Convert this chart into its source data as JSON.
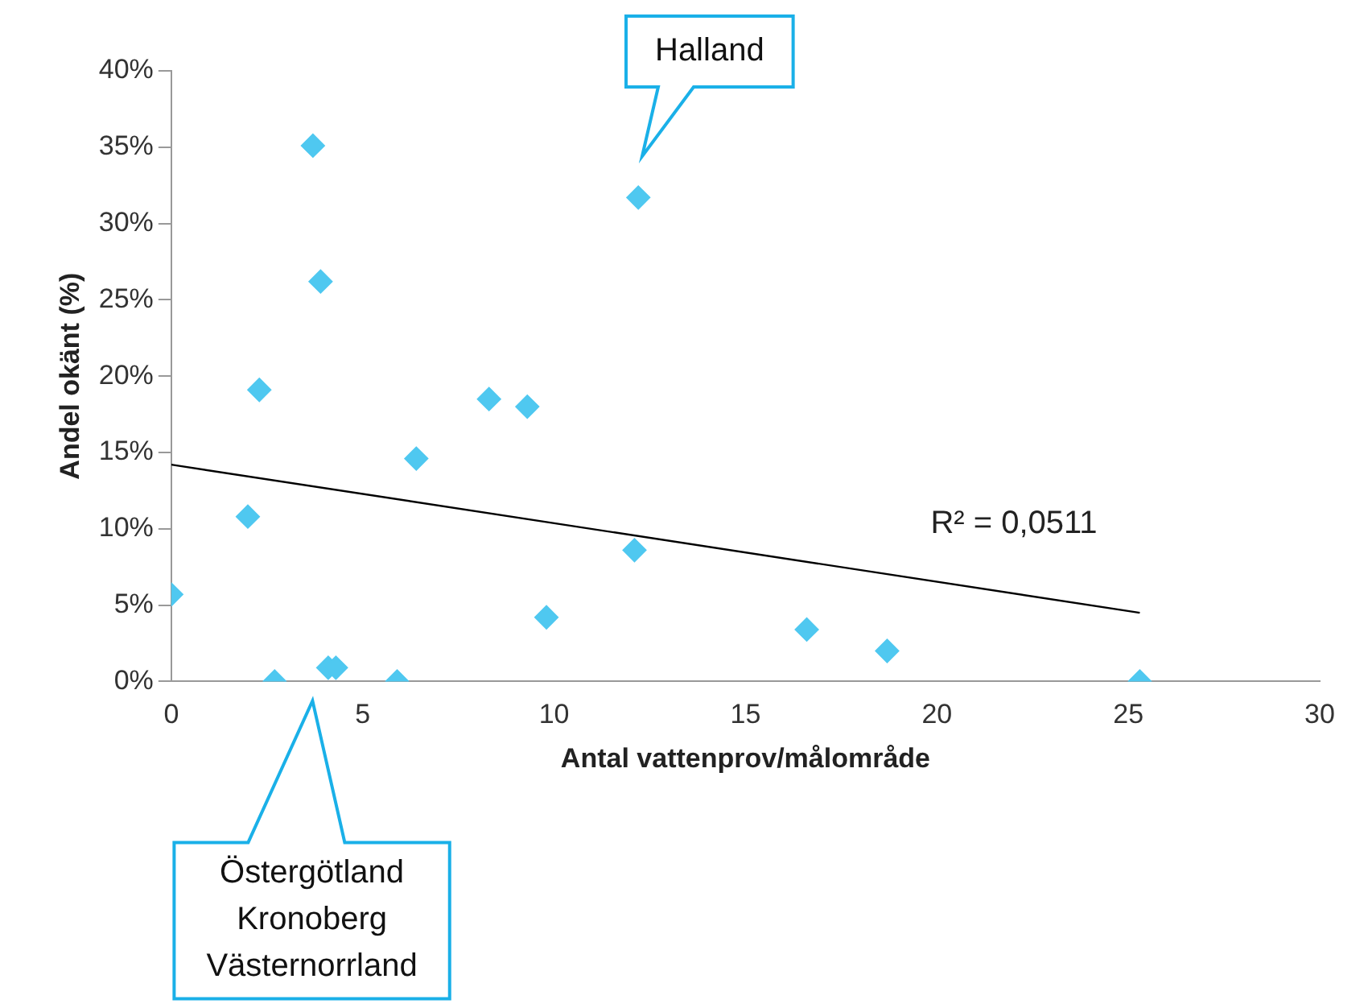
{
  "chart_data": {
    "type": "scatter",
    "xlabel": "Antal vattenprov/målområde",
    "ylabel": "Andel okänt (%)",
    "x": [
      0,
      2,
      2.3,
      2.7,
      3.7,
      3.9,
      4.1,
      4.3,
      5.9,
      6.4,
      8.3,
      9.3,
      9.8,
      12.1,
      12.2,
      16.6,
      18.7,
      25.3
    ],
    "series": [
      {
        "marker": "diamond",
        "color": "#4fc8f0",
        "values": [
          5.7,
          10.8,
          19.1,
          0,
          35.1,
          26.2,
          0.9,
          0.9,
          0,
          14.6,
          18.5,
          18,
          4.2,
          8.6,
          31.7,
          3.4,
          2,
          0
        ]
      },
      {
        "type": "line",
        "marker": "none",
        "color": "#000000",
        "x": [
          0,
          25.3
        ],
        "values": [
          14.2,
          4.5
        ]
      }
    ],
    "grid": false,
    "legend": false,
    "xlim": [
      0,
      30
    ],
    "xticks": [
      0,
      5,
      10,
      15,
      20,
      25,
      30
    ],
    "ylim": [
      0,
      40
    ],
    "yticks": [
      {
        "value": 0,
        "label": "0%"
      },
      {
        "value": 5,
        "label": "5%"
      },
      {
        "value": 10,
        "label": "10%"
      },
      {
        "value": 15,
        "label": "15%"
      },
      {
        "value": 20,
        "label": "20%"
      },
      {
        "value": 25,
        "label": "25%"
      },
      {
        "value": 30,
        "label": "30%"
      },
      {
        "value": 35,
        "label": "35%"
      },
      {
        "value": 40,
        "label": "40%"
      }
    ],
    "annotations": [
      "Halland",
      "Östergötland\nKronoberg\nVästernorrland",
      "R² = 0,0511"
    ]
  }
}
